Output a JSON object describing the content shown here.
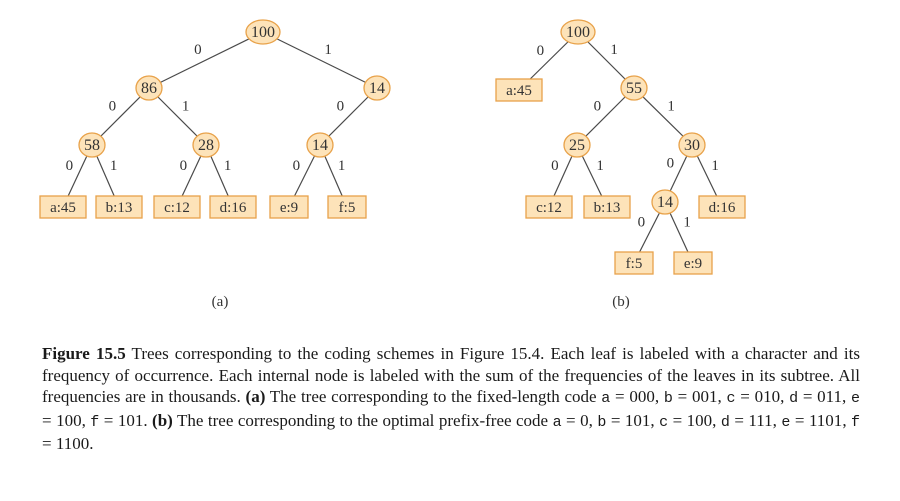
{
  "tree_a": {
    "label": "(a)",
    "nodes": [
      {
        "id": "a_root",
        "text": "100",
        "type": "internal"
      },
      {
        "id": "a_86",
        "text": "86",
        "type": "internal"
      },
      {
        "id": "a_14top",
        "text": "14",
        "type": "internal"
      },
      {
        "id": "a_58",
        "text": "58",
        "type": "internal"
      },
      {
        "id": "a_28",
        "text": "28",
        "type": "internal"
      },
      {
        "id": "a_14mid",
        "text": "14",
        "type": "internal"
      },
      {
        "id": "a_la",
        "text": "a:45",
        "type": "leaf"
      },
      {
        "id": "a_lb",
        "text": "b:13",
        "type": "leaf"
      },
      {
        "id": "a_lc",
        "text": "c:12",
        "type": "leaf"
      },
      {
        "id": "a_ld",
        "text": "d:16",
        "type": "leaf"
      },
      {
        "id": "a_le",
        "text": "e:9",
        "type": "leaf"
      },
      {
        "id": "a_lf",
        "text": "f:5",
        "type": "leaf"
      }
    ],
    "edges": [
      {
        "from": "a_root",
        "to": "a_86",
        "bit": "0"
      },
      {
        "from": "a_root",
        "to": "a_14top",
        "bit": "1"
      },
      {
        "from": "a_86",
        "to": "a_58",
        "bit": "0"
      },
      {
        "from": "a_86",
        "to": "a_28",
        "bit": "1"
      },
      {
        "from": "a_14top",
        "to": "a_14mid",
        "bit": "0"
      },
      {
        "from": "a_58",
        "to": "a_la",
        "bit": "0"
      },
      {
        "from": "a_58",
        "to": "a_lb",
        "bit": "1"
      },
      {
        "from": "a_28",
        "to": "a_lc",
        "bit": "0"
      },
      {
        "from": "a_28",
        "to": "a_ld",
        "bit": "1"
      },
      {
        "from": "a_14mid",
        "to": "a_le",
        "bit": "0"
      },
      {
        "from": "a_14mid",
        "to": "a_lf",
        "bit": "1"
      }
    ]
  },
  "tree_b": {
    "label": "(b)",
    "nodes": [
      {
        "id": "b_root",
        "text": "100",
        "type": "internal"
      },
      {
        "id": "b_la",
        "text": "a:45",
        "type": "leaf"
      },
      {
        "id": "b_55",
        "text": "55",
        "type": "internal"
      },
      {
        "id": "b_25",
        "text": "25",
        "type": "internal"
      },
      {
        "id": "b_30",
        "text": "30",
        "type": "internal"
      },
      {
        "id": "b_lc",
        "text": "c:12",
        "type": "leaf"
      },
      {
        "id": "b_lb",
        "text": "b:13",
        "type": "leaf"
      },
      {
        "id": "b_14",
        "text": "14",
        "type": "internal"
      },
      {
        "id": "b_ld",
        "text": "d:16",
        "type": "leaf"
      },
      {
        "id": "b_lf",
        "text": "f:5",
        "type": "leaf"
      },
      {
        "id": "b_le",
        "text": "e:9",
        "type": "leaf"
      }
    ],
    "edges": [
      {
        "from": "b_root",
        "to": "b_la",
        "bit": "0"
      },
      {
        "from": "b_root",
        "to": "b_55",
        "bit": "1"
      },
      {
        "from": "b_55",
        "to": "b_25",
        "bit": "0"
      },
      {
        "from": "b_55",
        "to": "b_30",
        "bit": "1"
      },
      {
        "from": "b_25",
        "to": "b_lc",
        "bit": "0"
      },
      {
        "from": "b_25",
        "to": "b_lb",
        "bit": "1"
      },
      {
        "from": "b_30",
        "to": "b_14",
        "bit": "0"
      },
      {
        "from": "b_30",
        "to": "b_ld",
        "bit": "1"
      },
      {
        "from": "b_14",
        "to": "b_lf",
        "bit": "0"
      },
      {
        "from": "b_14",
        "to": "b_le",
        "bit": "1"
      }
    ]
  },
  "caption": {
    "heading": "Figure 15.5",
    "sentence1": " Trees corresponding to the coding schemes in Figure 15.4. Each leaf is labeled with a character and its frequency of occurrence. Each internal node is labeled with the sum of the frequencies of the leaves in its subtree. All frequencies are in thousands. ",
    "part_a_label": "(a)",
    "part_a_text": " The tree corresponding to the fixed-length code ",
    "code_a": [
      {
        "ch": "a",
        "code": "000"
      },
      {
        "ch": "b",
        "code": "001"
      },
      {
        "ch": "c",
        "code": "010"
      },
      {
        "ch": "d",
        "code": "011"
      },
      {
        "ch": "e",
        "code": "100"
      },
      {
        "ch": "f",
        "code": "101"
      }
    ],
    "part_b_label": "(b)",
    "part_b_text": " The tree corresponding to the optimal prefix-free code ",
    "code_b": [
      {
        "ch": "a",
        "code": "0"
      },
      {
        "ch": "b",
        "code": "101"
      },
      {
        "ch": "c",
        "code": "100"
      },
      {
        "ch": "d",
        "code": "111"
      },
      {
        "ch": "e",
        "code": "1101"
      },
      {
        "ch": "f",
        "code": "1100"
      }
    ]
  },
  "colors": {
    "node_fill": "#fde3b9",
    "node_stroke": "#e8a24a",
    "edge": "#4a4a4a",
    "text": "#333333"
  }
}
